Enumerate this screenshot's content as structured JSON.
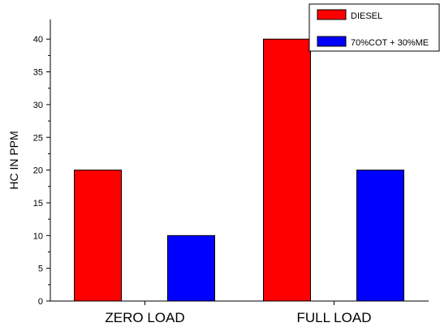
{
  "chart_data": {
    "type": "bar",
    "categories": [
      "ZERO LOAD",
      "FULL LOAD"
    ],
    "series": [
      {
        "name": "DIESEL",
        "values": [
          20,
          40
        ],
        "color": "#ff0000"
      },
      {
        "name": "70%COT + 30%ME",
        "values": [
          10,
          20
        ],
        "color": "#0000ff"
      }
    ],
    "title": "",
    "xlabel": "",
    "ylabel": "HC IN PPM",
    "ylim": [
      0,
      43
    ],
    "yticks": [
      0,
      5,
      10,
      15,
      20,
      25,
      30,
      35,
      40
    ],
    "grid": false,
    "legend_position": "top-right"
  }
}
